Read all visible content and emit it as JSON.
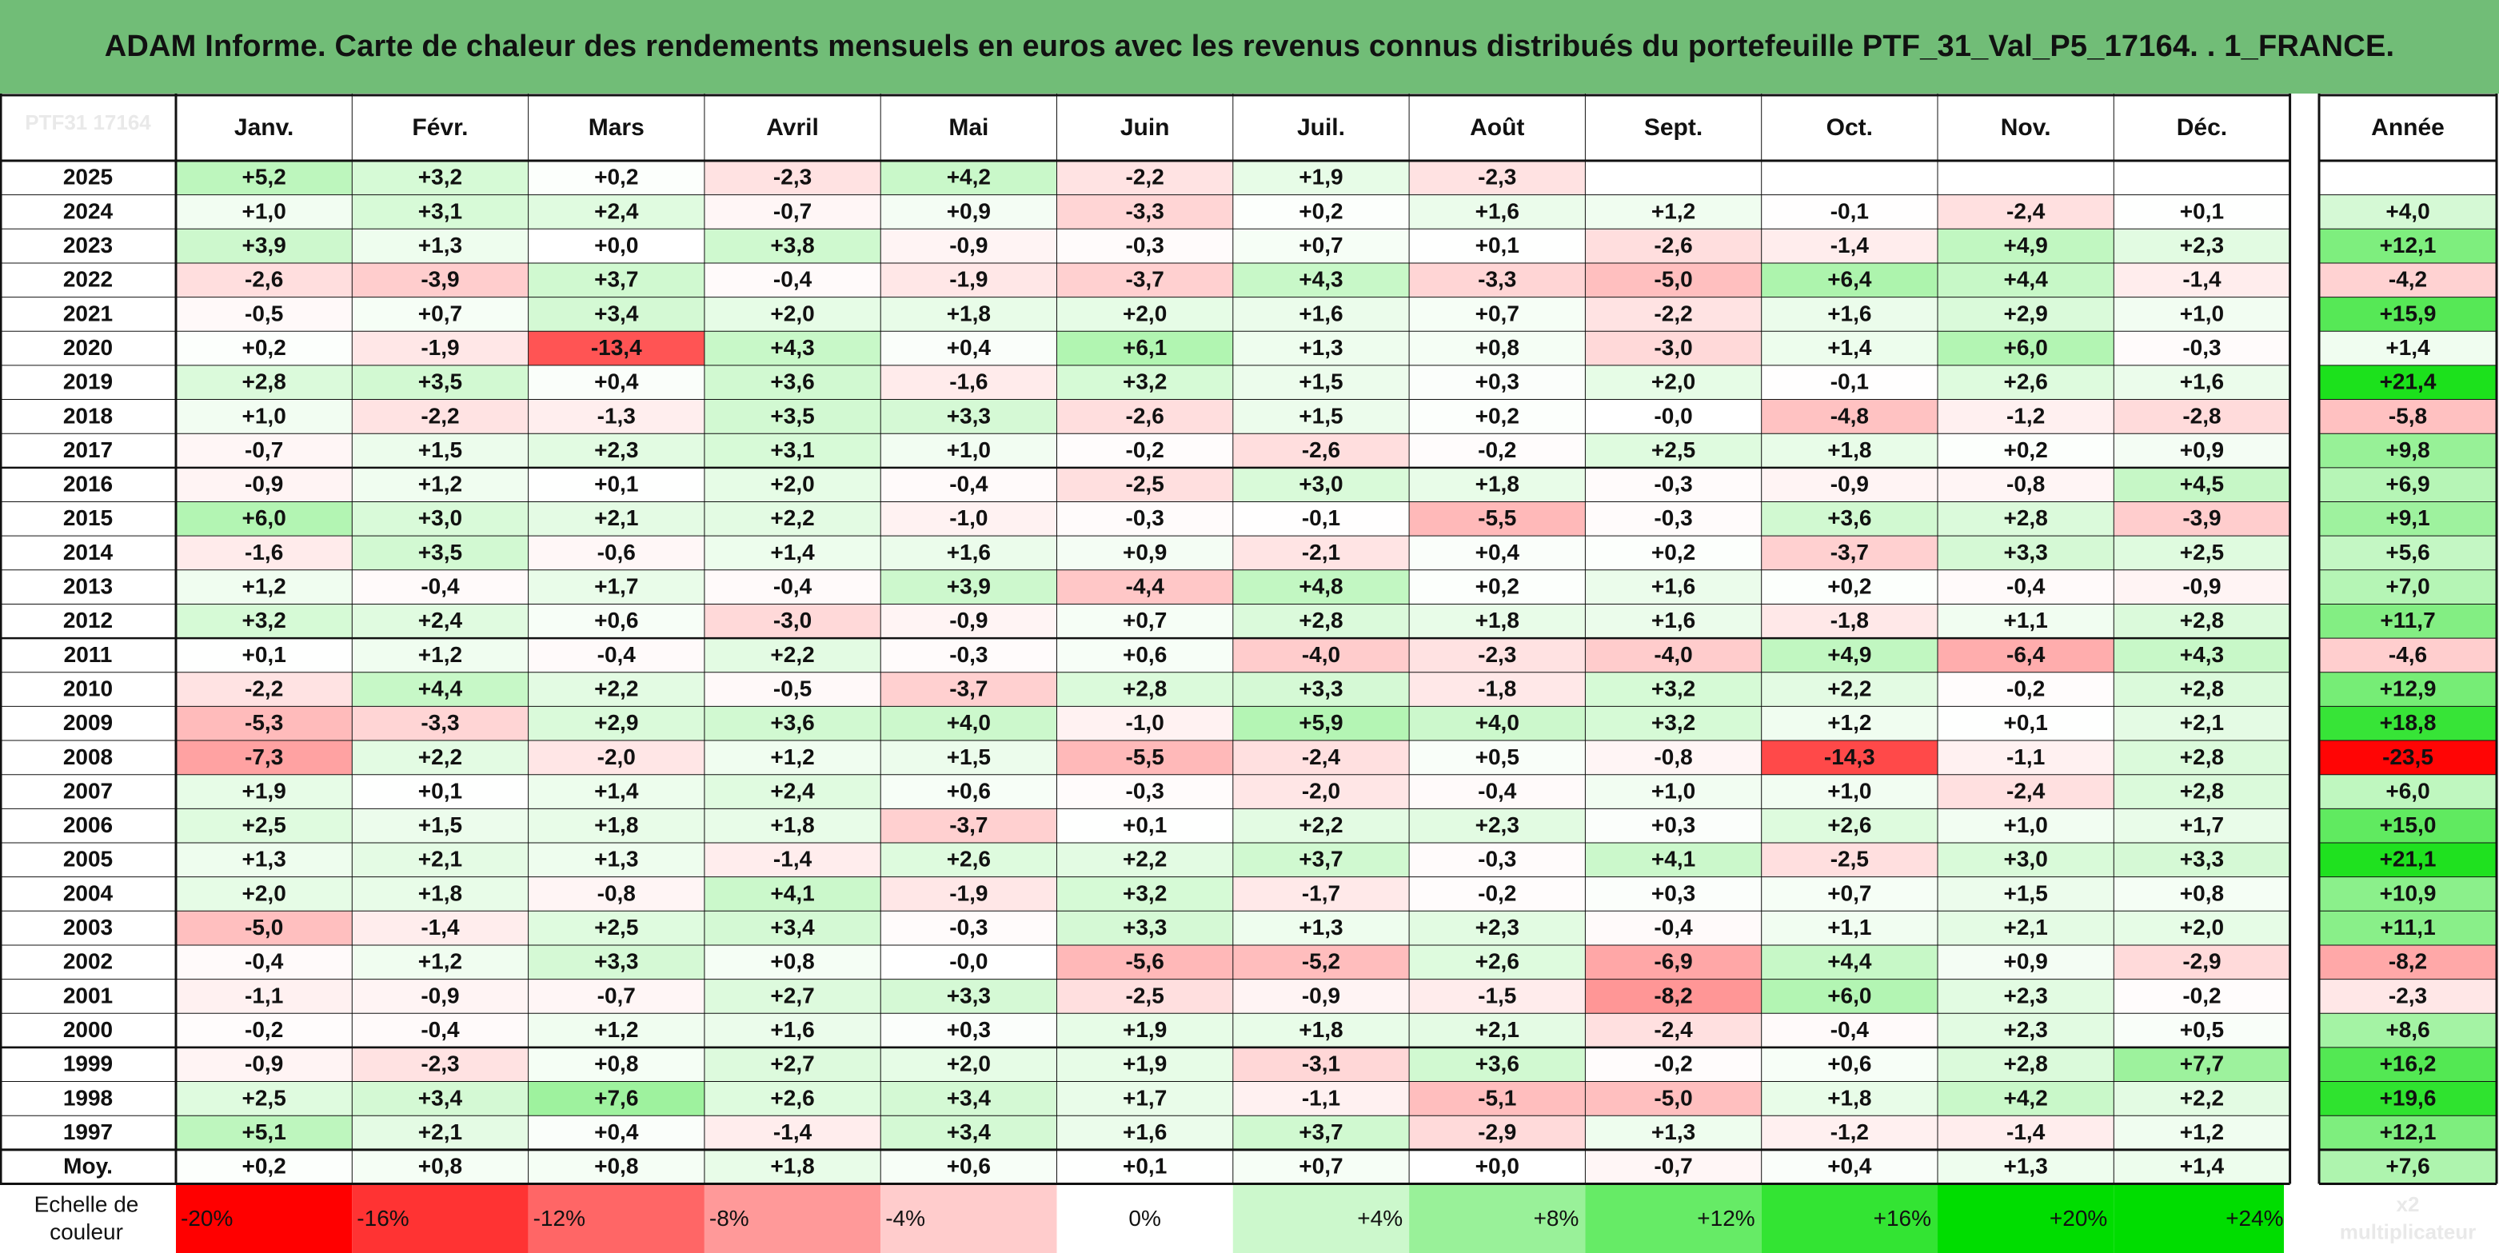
{
  "title": "ADAM Informe. Carte de chaleur des rendements mensuels en euros avec les revenus connus distribués du portefeuille PTF_31_Val_P5_17164. . 1_FRANCE.",
  "colors": {
    "title_bg": "#71bd77",
    "neg_max": "#ff0000",
    "pos_max": "#00dd00",
    "neutral": "#ffffff",
    "border": "#000000"
  },
  "chart_data": {
    "type": "heatmap",
    "title": "ADAM Informe. Carte de chaleur des rendements mensuels en euros avec les revenus connus distribués du portefeuille PTF_31_Val_P5_17164. . 1_FRANCE.",
    "corner_label": "PTF31 17164",
    "columns": [
      "Janv.",
      "Févr.",
      "Mars",
      "Avril",
      "Mai",
      "Juin",
      "Juil.",
      "Août",
      "Sept.",
      "Oct.",
      "Nov.",
      "Déc."
    ],
    "annual_label": "Année",
    "years": [
      "2025",
      "2024",
      "2023",
      "2022",
      "2021",
      "2020",
      "2019",
      "2018",
      "2017",
      "2016",
      "2015",
      "2014",
      "2013",
      "2012",
      "2011",
      "2010",
      "2009",
      "2008",
      "2007",
      "2006",
      "2005",
      "2004",
      "2003",
      "2002",
      "2001",
      "2000",
      "1999",
      "1998",
      "1997"
    ],
    "monthly": [
      [
        "+5,2",
        "+3,2",
        "+0,2",
        "-2,3",
        "+4,2",
        "-2,2",
        "+1,9",
        "-2,3",
        "",
        "",
        "",
        ""
      ],
      [
        "+1,0",
        "+3,1",
        "+2,4",
        "-0,7",
        "+0,9",
        "-3,3",
        "+0,2",
        "+1,6",
        "+1,2",
        "-0,1",
        "-2,4",
        "+0,1"
      ],
      [
        "+3,9",
        "+1,3",
        "+0,0",
        "+3,8",
        "-0,9",
        "-0,3",
        "+0,7",
        "+0,1",
        "-2,6",
        "-1,4",
        "+4,9",
        "+2,3"
      ],
      [
        "-2,6",
        "-3,9",
        "+3,7",
        "-0,4",
        "-1,9",
        "-3,7",
        "+4,3",
        "-3,3",
        "-5,0",
        "+6,4",
        "+4,4",
        "-1,4"
      ],
      [
        "-0,5",
        "+0,7",
        "+3,4",
        "+2,0",
        "+1,8",
        "+2,0",
        "+1,6",
        "+0,7",
        "-2,2",
        "+1,6",
        "+2,9",
        "+1,0"
      ],
      [
        "+0,2",
        "-1,9",
        "-13,4",
        "+4,3",
        "+0,4",
        "+6,1",
        "+1,3",
        "+0,8",
        "-3,0",
        "+1,4",
        "+6,0",
        "-0,3"
      ],
      [
        "+2,8",
        "+3,5",
        "+0,4",
        "+3,6",
        "-1,6",
        "+3,2",
        "+1,5",
        "+0,3",
        "+2,0",
        "-0,1",
        "+2,6",
        "+1,6"
      ],
      [
        "+1,0",
        "-2,2",
        "-1,3",
        "+3,5",
        "+3,3",
        "-2,6",
        "+1,5",
        "+0,2",
        "-0,0",
        "-4,8",
        "-1,2",
        "-2,8"
      ],
      [
        "-0,7",
        "+1,5",
        "+2,3",
        "+3,1",
        "+1,0",
        "-0,2",
        "-2,6",
        "-0,2",
        "+2,5",
        "+1,8",
        "+0,2",
        "+0,9"
      ],
      [
        "-0,9",
        "+1,2",
        "+0,1",
        "+2,0",
        "-0,4",
        "-2,5",
        "+3,0",
        "+1,8",
        "-0,3",
        "-0,9",
        "-0,8",
        "+4,5"
      ],
      [
        "+6,0",
        "+3,0",
        "+2,1",
        "+2,2",
        "-1,0",
        "-0,3",
        "-0,1",
        "-5,5",
        "-0,3",
        "+3,6",
        "+2,8",
        "-3,9"
      ],
      [
        "-1,6",
        "+3,5",
        "-0,6",
        "+1,4",
        "+1,6",
        "+0,9",
        "-2,1",
        "+0,4",
        "+0,2",
        "-3,7",
        "+3,3",
        "+2,5"
      ],
      [
        "+1,2",
        "-0,4",
        "+1,7",
        "-0,4",
        "+3,9",
        "-4,4",
        "+4,8",
        "+0,2",
        "+1,6",
        "+0,2",
        "-0,4",
        "-0,9"
      ],
      [
        "+3,2",
        "+2,4",
        "+0,6",
        "-3,0",
        "-0,9",
        "+0,7",
        "+2,8",
        "+1,8",
        "+1,6",
        "-1,8",
        "+1,1",
        "+2,8"
      ],
      [
        "+0,1",
        "+1,2",
        "-0,4",
        "+2,2",
        "-0,3",
        "+0,6",
        "-4,0",
        "-2,3",
        "-4,0",
        "+4,9",
        "-6,4",
        "+4,3"
      ],
      [
        "-2,2",
        "+4,4",
        "+2,2",
        "-0,5",
        "-3,7",
        "+2,8",
        "+3,3",
        "-1,8",
        "+3,2",
        "+2,2",
        "-0,2",
        "+2,8"
      ],
      [
        "-5,3",
        "-3,3",
        "+2,9",
        "+3,6",
        "+4,0",
        "-1,0",
        "+5,9",
        "+4,0",
        "+3,2",
        "+1,2",
        "+0,1",
        "+2,1"
      ],
      [
        "-7,3",
        "+2,2",
        "-2,0",
        "+1,2",
        "+1,5",
        "-5,5",
        "-2,4",
        "+0,5",
        "-0,8",
        "-14,3",
        "-1,1",
        "+2,8"
      ],
      [
        "+1,9",
        "+0,1",
        "+1,4",
        "+2,4",
        "+0,6",
        "-0,3",
        "-2,0",
        "-0,4",
        "+1,0",
        "+1,0",
        "-2,4",
        "+2,8"
      ],
      [
        "+2,5",
        "+1,5",
        "+1,8",
        "+1,8",
        "-3,7",
        "+0,1",
        "+2,2",
        "+2,3",
        "+0,3",
        "+2,6",
        "+1,0",
        "+1,7"
      ],
      [
        "+1,3",
        "+2,1",
        "+1,3",
        "-1,4",
        "+2,6",
        "+2,2",
        "+3,7",
        "-0,3",
        "+4,1",
        "-2,5",
        "+3,0",
        "+3,3"
      ],
      [
        "+2,0",
        "+1,8",
        "-0,8",
        "+4,1",
        "-1,9",
        "+3,2",
        "-1,7",
        "-0,2",
        "+0,3",
        "+0,7",
        "+1,5",
        "+0,8"
      ],
      [
        "-5,0",
        "-1,4",
        "+2,5",
        "+3,4",
        "-0,3",
        "+3,3",
        "+1,3",
        "+2,3",
        "-0,4",
        "+1,1",
        "+2,1",
        "+2,0"
      ],
      [
        "-0,4",
        "+1,2",
        "+3,3",
        "+0,8",
        "-0,0",
        "-5,6",
        "-5,2",
        "+2,6",
        "-6,9",
        "+4,4",
        "+0,9",
        "-2,9"
      ],
      [
        "-1,1",
        "-0,9",
        "-0,7",
        "+2,7",
        "+3,3",
        "-2,5",
        "-0,9",
        "-1,5",
        "-8,2",
        "+6,0",
        "+2,3",
        "-0,2"
      ],
      [
        "-0,2",
        "-0,4",
        "+1,2",
        "+1,6",
        "+0,3",
        "+1,9",
        "+1,8",
        "+2,1",
        "-2,4",
        "-0,4",
        "+2,3",
        "+0,5"
      ],
      [
        "-0,9",
        "-2,3",
        "+0,8",
        "+2,7",
        "+2,0",
        "+1,9",
        "-3,1",
        "+3,6",
        "-0,2",
        "+0,6",
        "+2,8",
        "+7,7"
      ],
      [
        "+2,5",
        "+3,4",
        "+7,6",
        "+2,6",
        "+3,4",
        "+1,7",
        "-1,1",
        "-5,1",
        "-5,0",
        "+1,8",
        "+4,2",
        "+2,2"
      ],
      [
        "+5,1",
        "+2,1",
        "+0,4",
        "-1,4",
        "+3,4",
        "+1,6",
        "+3,7",
        "-2,9",
        "+1,3",
        "-1,2",
        "-1,4",
        "+1,2"
      ]
    ],
    "annual": [
      "",
      "+4,0",
      "+12,1",
      "-4,2",
      "+15,9",
      "+1,4",
      "+21,4",
      "-5,8",
      "+9,8",
      "+6,9",
      "+9,1",
      "+5,6",
      "+7,0",
      "+11,7",
      "-4,6",
      "+12,9",
      "+18,8",
      "-23,5",
      "+6,0",
      "+15,0",
      "+21,1",
      "+10,9",
      "+11,1",
      "-8,2",
      "-2,3",
      "+8,6",
      "+16,2",
      "+19,6",
      "+12,1"
    ],
    "average": {
      "label": "Moy.",
      "monthly": [
        "+0,2",
        "+0,8",
        "+0,8",
        "+1,8",
        "+0,6",
        "+0,1",
        "+0,7",
        "+0,0",
        "-0,7",
        "+0,4",
        "+1,3",
        "+1,4"
      ],
      "annual": "+7,6"
    },
    "scale": {
      "label_line1": "Echelle de",
      "label_line2": "couleur",
      "labels": [
        "-20%",
        "-16%",
        "-12%",
        "-8%",
        "-4%",
        "0%",
        "+4%",
        "+8%",
        "+12%",
        "+16%",
        "+20%",
        "+24%"
      ],
      "values": [
        -20,
        -16,
        -12,
        -8,
        -4,
        0,
        4,
        8,
        12,
        16,
        20,
        24
      ],
      "annual_note_line1": "x2",
      "annual_note_line2": "multiplicateur"
    }
  }
}
